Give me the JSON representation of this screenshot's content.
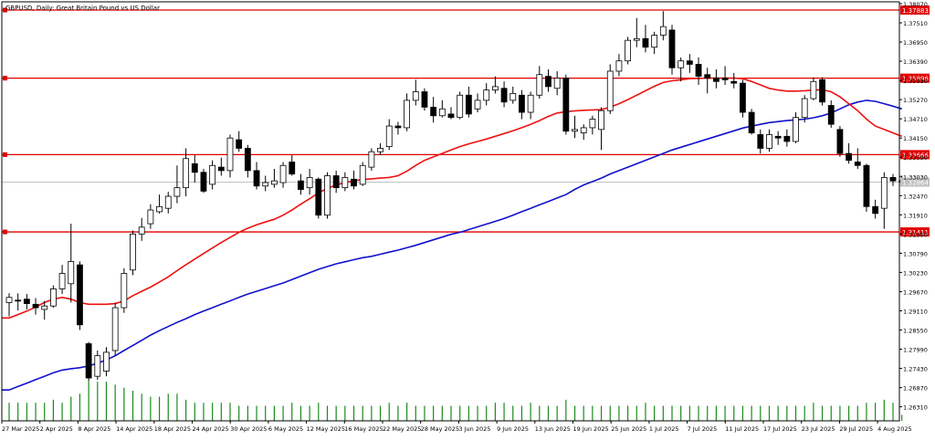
{
  "header": {
    "title": "GBPUSD, Daily:  Great Britain Pound vs US Dollar"
  },
  "colors": {
    "background": "#ffffff",
    "frame": "#000000",
    "candle_up_fill": "#ffffff",
    "candle_down_fill": "#000000",
    "candle_line": "#000000",
    "ma_fast": "#ee1111",
    "ma_slow": "#1111cc",
    "level_line": "#e00000",
    "level_label_bg": "#e00000",
    "level_label_text": "#ffffff",
    "volume": "#1a8a1a",
    "price_line": "#c0c0c0",
    "price_label_bg": "#c0c0c0"
  },
  "chart_data": {
    "type": "candlestick",
    "symbol": "GBPUSD",
    "timeframe": "Daily",
    "title": "GBPUSD, Daily:  Great Britain Pound vs US Dollar",
    "y_axis": {
      "range": [
        1.259,
        1.3807
      ],
      "ticks": [
        "1.38070",
        "1.37510",
        "1.36950",
        "1.36390",
        "1.35830",
        "1.35270",
        "1.34710",
        "1.34150",
        "1.33590",
        "1.33030",
        "1.32470",
        "1.31910",
        "1.31350",
        "1.30790",
        "1.30230",
        "1.29670",
        "1.29110",
        "1.28550",
        "1.27990",
        "1.27430",
        "1.26870",
        "1.26310"
      ]
    },
    "x_axis": {
      "tick_labels": [
        "27 Mar 2025",
        "2 Apr 2025",
        "8 Apr 2025",
        "14 Apr 2025",
        "18 Apr 2025",
        "24 Apr 2025",
        "30 Apr 2025",
        "6 May 2025",
        "12 May 2025",
        "16 May 2025",
        "22 May 2025",
        "28 May 2025",
        "3 Jun 2025",
        "9 Jun 2025",
        "13 Jun 2025",
        "19 Jun 2025",
        "25 Jun 2025",
        "1 Jul 2025",
        "7 Jul 2025",
        "11 Jul 2025",
        "17 Jul 2025",
        "23 Jul 2025",
        "29 Jul 2025",
        "4 Aug 2025"
      ]
    },
    "current_price": "1.32864",
    "horizontal_levels": [
      {
        "label": "1.37883",
        "value": 1.37883
      },
      {
        "label": "1.35896",
        "value": 1.35896
      },
      {
        "label": "1.33666",
        "value": 1.33666
      },
      {
        "label": "1.31411",
        "value": 1.31411
      }
    ],
    "candles": [
      {
        "o": 1.2935,
        "h": 1.2962,
        "l": 1.2895,
        "c": 1.295
      },
      {
        "o": 1.2942,
        "h": 1.2962,
        "l": 1.2912,
        "c": 1.294
      },
      {
        "o": 1.2945,
        "h": 1.296,
        "l": 1.2915,
        "c": 1.2932
      },
      {
        "o": 1.293,
        "h": 1.2948,
        "l": 1.29,
        "c": 1.292
      },
      {
        "o": 1.2915,
        "h": 1.294,
        "l": 1.2885,
        "c": 1.2925
      },
      {
        "o": 1.2925,
        "h": 1.2985,
        "l": 1.292,
        "c": 1.2975
      },
      {
        "o": 1.2975,
        "h": 1.3045,
        "l": 1.296,
        "c": 1.302
      },
      {
        "o": 1.299,
        "h": 1.3165,
        "l": 1.2935,
        "c": 1.3055
      },
      {
        "o": 1.3045,
        "h": 1.3055,
        "l": 1.2855,
        "c": 1.287
      },
      {
        "o": 1.2815,
        "h": 1.282,
        "l": 1.2705,
        "c": 1.2715
      },
      {
        "o": 1.272,
        "h": 1.2795,
        "l": 1.271,
        "c": 1.278
      },
      {
        "o": 1.2735,
        "h": 1.2805,
        "l": 1.272,
        "c": 1.279
      },
      {
        "o": 1.2795,
        "h": 1.2935,
        "l": 1.278,
        "c": 1.292
      },
      {
        "o": 1.292,
        "h": 1.3035,
        "l": 1.2905,
        "c": 1.302
      },
      {
        "o": 1.303,
        "h": 1.3145,
        "l": 1.3015,
        "c": 1.3135
      },
      {
        "o": 1.3135,
        "h": 1.3182,
        "l": 1.3115,
        "c": 1.3155
      },
      {
        "o": 1.3165,
        "h": 1.3222,
        "l": 1.315,
        "c": 1.3205
      },
      {
        "o": 1.32,
        "h": 1.325,
        "l": 1.3195,
        "c": 1.3215
      },
      {
        "o": 1.321,
        "h": 1.3258,
        "l": 1.3195,
        "c": 1.3245
      },
      {
        "o": 1.3245,
        "h": 1.3335,
        "l": 1.3225,
        "c": 1.327
      },
      {
        "o": 1.327,
        "h": 1.3385,
        "l": 1.3245,
        "c": 1.3355
      },
      {
        "o": 1.334,
        "h": 1.3365,
        "l": 1.3285,
        "c": 1.3315
      },
      {
        "o": 1.3315,
        "h": 1.3325,
        "l": 1.3255,
        "c": 1.326
      },
      {
        "o": 1.328,
        "h": 1.335,
        "l": 1.3265,
        "c": 1.3335
      },
      {
        "o": 1.333,
        "h": 1.3358,
        "l": 1.3305,
        "c": 1.332
      },
      {
        "o": 1.332,
        "h": 1.3425,
        "l": 1.33,
        "c": 1.3415
      },
      {
        "o": 1.341,
        "h": 1.3435,
        "l": 1.3375,
        "c": 1.3385
      },
      {
        "o": 1.3385,
        "h": 1.3395,
        "l": 1.33,
        "c": 1.332
      },
      {
        "o": 1.332,
        "h": 1.3345,
        "l": 1.3265,
        "c": 1.3275
      },
      {
        "o": 1.3275,
        "h": 1.3305,
        "l": 1.326,
        "c": 1.3285
      },
      {
        "o": 1.328,
        "h": 1.3325,
        "l": 1.327,
        "c": 1.329
      },
      {
        "o": 1.3285,
        "h": 1.3345,
        "l": 1.327,
        "c": 1.3335
      },
      {
        "o": 1.3345,
        "h": 1.3365,
        "l": 1.3305,
        "c": 1.331
      },
      {
        "o": 1.329,
        "h": 1.331,
        "l": 1.325,
        "c": 1.3265
      },
      {
        "o": 1.327,
        "h": 1.3325,
        "l": 1.325,
        "c": 1.33
      },
      {
        "o": 1.3295,
        "h": 1.33,
        "l": 1.318,
        "c": 1.319
      },
      {
        "o": 1.319,
        "h": 1.3315,
        "l": 1.318,
        "c": 1.3305
      },
      {
        "o": 1.3305,
        "h": 1.332,
        "l": 1.3255,
        "c": 1.327
      },
      {
        "o": 1.327,
        "h": 1.3315,
        "l": 1.326,
        "c": 1.33
      },
      {
        "o": 1.3295,
        "h": 1.332,
        "l": 1.3265,
        "c": 1.3275
      },
      {
        "o": 1.328,
        "h": 1.3345,
        "l": 1.3275,
        "c": 1.3335
      },
      {
        "o": 1.333,
        "h": 1.3385,
        "l": 1.332,
        "c": 1.3375
      },
      {
        "o": 1.3375,
        "h": 1.34,
        "l": 1.3365,
        "c": 1.3385
      },
      {
        "o": 1.339,
        "h": 1.347,
        "l": 1.338,
        "c": 1.345
      },
      {
        "o": 1.345,
        "h": 1.3462,
        "l": 1.3425,
        "c": 1.3445
      },
      {
        "o": 1.3445,
        "h": 1.3545,
        "l": 1.3435,
        "c": 1.3525
      },
      {
        "o": 1.3525,
        "h": 1.3585,
        "l": 1.351,
        "c": 1.355
      },
      {
        "o": 1.355,
        "h": 1.356,
        "l": 1.3495,
        "c": 1.3505
      },
      {
        "o": 1.3505,
        "h": 1.3535,
        "l": 1.346,
        "c": 1.348
      },
      {
        "o": 1.348,
        "h": 1.3525,
        "l": 1.3475,
        "c": 1.35
      },
      {
        "o": 1.3485,
        "h": 1.3505,
        "l": 1.347,
        "c": 1.3475
      },
      {
        "o": 1.3475,
        "h": 1.355,
        "l": 1.347,
        "c": 1.354
      },
      {
        "o": 1.354,
        "h": 1.3565,
        "l": 1.3475,
        "c": 1.3485
      },
      {
        "o": 1.35,
        "h": 1.3545,
        "l": 1.349,
        "c": 1.3525
      },
      {
        "o": 1.3525,
        "h": 1.3575,
        "l": 1.351,
        "c": 1.3555
      },
      {
        "o": 1.3555,
        "h": 1.3595,
        "l": 1.3545,
        "c": 1.3565
      },
      {
        "o": 1.356,
        "h": 1.358,
        "l": 1.3505,
        "c": 1.352
      },
      {
        "o": 1.3525,
        "h": 1.3565,
        "l": 1.3515,
        "c": 1.3545
      },
      {
        "o": 1.354,
        "h": 1.3555,
        "l": 1.347,
        "c": 1.349
      },
      {
        "o": 1.349,
        "h": 1.355,
        "l": 1.347,
        "c": 1.354
      },
      {
        "o": 1.354,
        "h": 1.3625,
        "l": 1.353,
        "c": 1.36
      },
      {
        "o": 1.3595,
        "h": 1.3615,
        "l": 1.355,
        "c": 1.3565
      },
      {
        "o": 1.356,
        "h": 1.361,
        "l": 1.354,
        "c": 1.359
      },
      {
        "o": 1.359,
        "h": 1.36,
        "l": 1.3425,
        "c": 1.3435
      },
      {
        "o": 1.3435,
        "h": 1.348,
        "l": 1.3415,
        "c": 1.344
      },
      {
        "o": 1.343,
        "h": 1.3455,
        "l": 1.341,
        "c": 1.3445
      },
      {
        "o": 1.3445,
        "h": 1.348,
        "l": 1.3425,
        "c": 1.347
      },
      {
        "o": 1.344,
        "h": 1.3505,
        "l": 1.338,
        "c": 1.3495
      },
      {
        "o": 1.3495,
        "h": 1.363,
        "l": 1.3485,
        "c": 1.361
      },
      {
        "o": 1.361,
        "h": 1.366,
        "l": 1.3595,
        "c": 1.364
      },
      {
        "o": 1.364,
        "h": 1.371,
        "l": 1.363,
        "c": 1.37
      },
      {
        "o": 1.37,
        "h": 1.3765,
        "l": 1.368,
        "c": 1.3705
      },
      {
        "o": 1.3705,
        "h": 1.3745,
        "l": 1.3665,
        "c": 1.368
      },
      {
        "o": 1.368,
        "h": 1.3725,
        "l": 1.366,
        "c": 1.3715
      },
      {
        "o": 1.3715,
        "h": 1.3785,
        "l": 1.37,
        "c": 1.374
      },
      {
        "o": 1.373,
        "h": 1.3745,
        "l": 1.36,
        "c": 1.362
      },
      {
        "o": 1.362,
        "h": 1.365,
        "l": 1.358,
        "c": 1.364
      },
      {
        "o": 1.364,
        "h": 1.366,
        "l": 1.3605,
        "c": 1.363
      },
      {
        "o": 1.363,
        "h": 1.365,
        "l": 1.357,
        "c": 1.3595
      },
      {
        "o": 1.36,
        "h": 1.362,
        "l": 1.3545,
        "c": 1.359
      },
      {
        "o": 1.359,
        "h": 1.3615,
        "l": 1.356,
        "c": 1.358
      },
      {
        "o": 1.359,
        "h": 1.3625,
        "l": 1.357,
        "c": 1.3585
      },
      {
        "o": 1.358,
        "h": 1.3605,
        "l": 1.356,
        "c": 1.3575
      },
      {
        "o": 1.3575,
        "h": 1.3585,
        "l": 1.3475,
        "c": 1.349
      },
      {
        "o": 1.349,
        "h": 1.35,
        "l": 1.3425,
        "c": 1.343
      },
      {
        "o": 1.3425,
        "h": 1.344,
        "l": 1.337,
        "c": 1.3385
      },
      {
        "o": 1.3385,
        "h": 1.344,
        "l": 1.3375,
        "c": 1.3425
      },
      {
        "o": 1.342,
        "h": 1.3435,
        "l": 1.3395,
        "c": 1.3415
      },
      {
        "o": 1.342,
        "h": 1.344,
        "l": 1.339,
        "c": 1.3405
      },
      {
        "o": 1.3405,
        "h": 1.349,
        "l": 1.34,
        "c": 1.3475
      },
      {
        "o": 1.3475,
        "h": 1.354,
        "l": 1.346,
        "c": 1.353
      },
      {
        "o": 1.353,
        "h": 1.3592,
        "l": 1.3525,
        "c": 1.358
      },
      {
        "o": 1.3585,
        "h": 1.3592,
        "l": 1.351,
        "c": 1.352
      },
      {
        "o": 1.351,
        "h": 1.3525,
        "l": 1.3445,
        "c": 1.3455
      },
      {
        "o": 1.344,
        "h": 1.345,
        "l": 1.336,
        "c": 1.337
      },
      {
        "o": 1.337,
        "h": 1.34,
        "l": 1.334,
        "c": 1.335
      },
      {
        "o": 1.3345,
        "h": 1.3385,
        "l": 1.3325,
        "c": 1.3335
      },
      {
        "o": 1.3335,
        "h": 1.334,
        "l": 1.32,
        "c": 1.3215
      },
      {
        "o": 1.3215,
        "h": 1.3235,
        "l": 1.318,
        "c": 1.3195
      },
      {
        "o": 1.321,
        "h": 1.3315,
        "l": 1.315,
        "c": 1.33
      },
      {
        "o": 1.33,
        "h": 1.331,
        "l": 1.3275,
        "c": 1.329
      },
      {
        "o": 1.329,
        "h": 1.3305,
        "l": 1.3275,
        "c": 1.3286
      }
    ],
    "volume": [
      30,
      30,
      30,
      30,
      30,
      35,
      30,
      40,
      45,
      65,
      65,
      65,
      60,
      55,
      50,
      45,
      40,
      40,
      45,
      45,
      35,
      30,
      30,
      30,
      30,
      30,
      25,
      25,
      25,
      25,
      25,
      25,
      30,
      25,
      25,
      30,
      25,
      25,
      25,
      25,
      25,
      25,
      25,
      30,
      25,
      30,
      25,
      25,
      25,
      25,
      25,
      25,
      25,
      25,
      25,
      30,
      30,
      25,
      25,
      30,
      25,
      25,
      25,
      35,
      25,
      25,
      25,
      25,
      25,
      25,
      25,
      25,
      30,
      25,
      25,
      25,
      25,
      25,
      25,
      25,
      25,
      25,
      25,
      25,
      25,
      25,
      25,
      25,
      25,
      25,
      25,
      30,
      25,
      25,
      25,
      25,
      25,
      30,
      30,
      35,
      30,
      10
    ],
    "ma_fast": [
      1.289,
      1.29,
      1.291,
      1.2922,
      1.2935,
      1.2945,
      1.295,
      1.2945,
      1.2935,
      1.293,
      1.293,
      1.293,
      1.2932,
      1.294,
      1.2955,
      1.2968,
      1.298,
      1.2995,
      1.301,
      1.3028,
      1.3045,
      1.3062,
      1.3078,
      1.3094,
      1.311,
      1.3125,
      1.314,
      1.3152,
      1.3162,
      1.317,
      1.3178,
      1.319,
      1.3205,
      1.3222,
      1.3238,
      1.3255,
      1.3268,
      1.3278,
      1.3285,
      1.329,
      1.3294,
      1.3296,
      1.3298,
      1.33,
      1.3305,
      1.3318,
      1.3335,
      1.335,
      1.336,
      1.337,
      1.338,
      1.339,
      1.3398,
      1.3405,
      1.3412,
      1.342,
      1.3428,
      1.3436,
      1.3445,
      1.3455,
      1.3466,
      1.3478,
      1.3488,
      1.3492,
      1.3494,
      1.3496,
      1.3497,
      1.3498,
      1.3505,
      1.3515,
      1.3527,
      1.354,
      1.3553,
      1.3566,
      1.3577,
      1.3582,
      1.3585,
      1.3588,
      1.3589,
      1.359,
      1.359,
      1.359,
      1.359,
      1.3588,
      1.358,
      1.357,
      1.356,
      1.3555,
      1.3552,
      1.3552,
      1.3553,
      1.3555,
      1.3556,
      1.355,
      1.3535,
      1.3515,
      1.3495,
      1.347,
      1.345,
      1.344,
      1.343,
      1.342
    ],
    "ma_slow": [
      1.268,
      1.269,
      1.27,
      1.271,
      1.272,
      1.273,
      1.2738,
      1.2742,
      1.2745,
      1.275,
      1.2758,
      1.2768,
      1.278,
      1.2795,
      1.281,
      1.2825,
      1.284,
      1.2853,
      1.2865,
      1.2877,
      1.2888,
      1.29,
      1.291,
      1.292,
      1.293,
      1.294,
      1.295,
      1.296,
      1.2968,
      1.2976,
      1.2984,
      1.2992,
      1.3002,
      1.3012,
      1.3022,
      1.3032,
      1.304,
      1.3048,
      1.3054,
      1.306,
      1.3066,
      1.307,
      1.3076,
      1.3082,
      1.3088,
      1.3095,
      1.3102,
      1.311,
      1.3118,
      1.3126,
      1.3134,
      1.314,
      1.3148,
      1.3156,
      1.3164,
      1.3172,
      1.318,
      1.319,
      1.32,
      1.321,
      1.322,
      1.323,
      1.324,
      1.325,
      1.3265,
      1.3278,
      1.3288,
      1.3298,
      1.331,
      1.332,
      1.333,
      1.334,
      1.335,
      1.336,
      1.337,
      1.338,
      1.3388,
      1.3396,
      1.3404,
      1.3412,
      1.342,
      1.3428,
      1.3436,
      1.3444,
      1.345,
      1.3455,
      1.346,
      1.3463,
      1.3466,
      1.3468,
      1.347,
      1.3474,
      1.348,
      1.3488,
      1.35,
      1.3512,
      1.352,
      1.3525,
      1.3522,
      1.3515,
      1.3508,
      1.35
    ]
  }
}
